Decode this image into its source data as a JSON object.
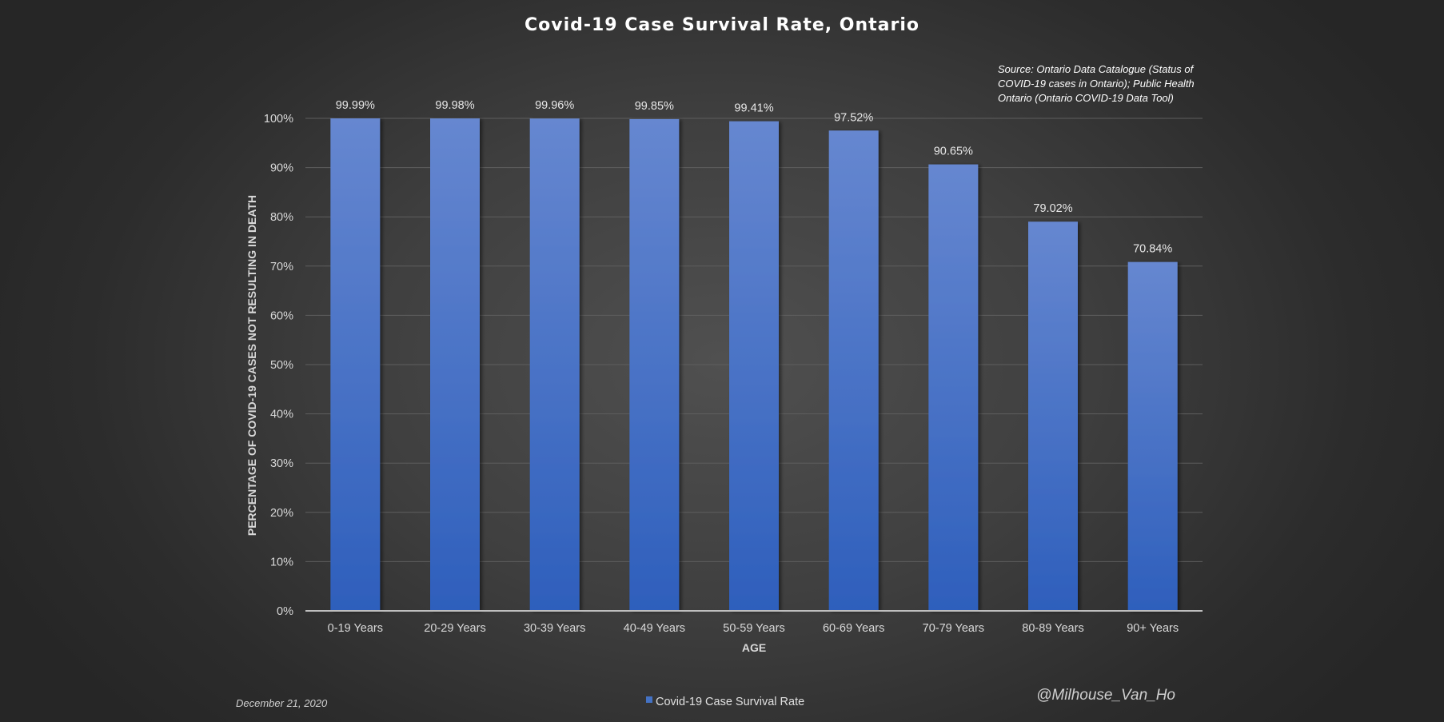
{
  "colors": {
    "bar_top": "#6687d0",
    "bar_bottom": "#2e5fbc",
    "legend_swatch": "#4472c4"
  },
  "chart_data": {
    "type": "bar",
    "title": "Covid-19 Case Survival Rate, Ontario",
    "source_note": [
      "Source: Ontario Data Catalogue (Status of",
      "COVID-19 cases in Ontario); Public Health",
      "Ontario (Ontario COVID-19 Data Tool)"
    ],
    "xlabel": "AGE",
    "ylabel": "PERCENTAGE OF COVID-19 CASES NOT RESULTING IN DEATH",
    "categories": [
      "0-19 Years",
      "20-29 Years",
      "30-39 Years",
      "40-49 Years",
      "50-59 Years",
      "60-69 Years",
      "70-79 Years",
      "80-89 Years",
      "90+ Years"
    ],
    "series": [
      {
        "name": "Covid-19 Case Survival Rate",
        "values": [
          99.99,
          99.98,
          99.96,
          99.85,
          99.41,
          97.52,
          90.65,
          79.02,
          70.84
        ],
        "data_labels": [
          "99.99%",
          "99.98%",
          "99.96%",
          "99.85%",
          "99.41%",
          "97.52%",
          "90.65%",
          "79.02%",
          "70.84%"
        ]
      }
    ],
    "ylim": [
      0,
      100
    ],
    "yticks": [
      0,
      10,
      20,
      30,
      40,
      50,
      60,
      70,
      80,
      90,
      100
    ],
    "ytick_labels": [
      "0%",
      "10%",
      "20%",
      "30%",
      "40%",
      "50%",
      "60%",
      "70%",
      "80%",
      "90%",
      "100%"
    ],
    "grid": true,
    "legend_position": "bottom"
  },
  "footer": {
    "date": "December 21, 2020",
    "handle": "@Milhouse_Van_Ho"
  }
}
